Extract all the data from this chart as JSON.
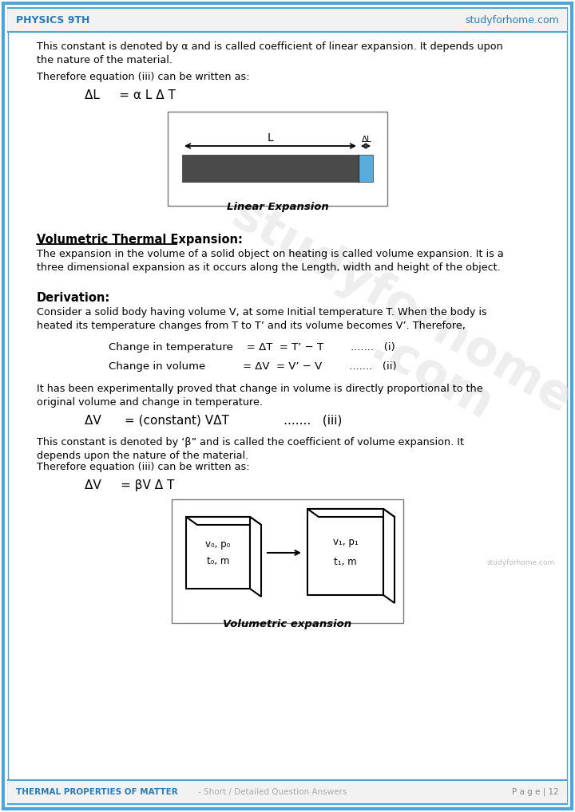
{
  "page_bg": "#ffffff",
  "border_color": "#4da6d9",
  "header_text_left": "PHYSICS 9TH",
  "header_text_right": "studyforhome.com",
  "footer_left": "THERMAL PROPERTIES OF MATTER",
  "footer_middle": "- Short / Detailed Question Answers",
  "footer_right": "P a g e | 12",
  "header_color": "#2d7ab5",
  "footer_color": "#2d7ab5",
  "body_text_color": "#000000",
  "para1_line1": "This constant is denoted by α and is called coefficient of linear expansion. It depends upon",
  "para1_line2": "the nature of the material.",
  "para2": "Therefore equation (iii) can be written as:",
  "equation1": "ΔL     = α L Δ T",
  "linear_caption": "Linear Expansion",
  "section1_title": "Volumetric Thermal Expansion:",
  "section1_line1": "The expansion in the volume of a solid object on heating is called volume expansion. It is a",
  "section1_line2": "three dimensional expansion as it occurs along the Length, width and height of the object.",
  "derivation_title": "Derivation:",
  "deriv_line1": "Consider a solid body having volume V, at some Initial temperature T. When the body is",
  "deriv_line2": "heated its temperature changes from T to T’ and its volume becomes V’. Therefore,",
  "eq_change_temp": "Change in temperature    = ΔT  = T’ − T        .......   (i)",
  "eq_change_vol": "Change in volume           = ΔV  = V’ − V        .......   (ii)",
  "prop_line1": "It has been experimentally proved that change in volume is directly proportional to the",
  "prop_line2": "original volume and change in temperature.",
  "eq_const": "ΔV      = (constant) VΔT              .......   (iii)",
  "beta_line1": "This constant is denoted by ‘β” and is called the coefficient of volume expansion. It",
  "beta_line2": "depends upon the nature of the material.",
  "para_eq3": "Therefore equation (iii) can be written as:",
  "equation2": "ΔV     = βV Δ T",
  "vol_caption": "Volumetric expansion",
  "watermark_small": "studyforhome.com"
}
